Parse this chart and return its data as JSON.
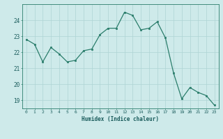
{
  "x": [
    0,
    1,
    2,
    3,
    4,
    5,
    6,
    7,
    8,
    9,
    10,
    11,
    12,
    13,
    14,
    15,
    16,
    17,
    18,
    19,
    20,
    21,
    22,
    23
  ],
  "y": [
    22.8,
    22.5,
    21.4,
    22.3,
    21.9,
    21.4,
    21.5,
    22.1,
    22.2,
    23.1,
    23.5,
    23.5,
    24.5,
    24.3,
    23.4,
    23.5,
    23.9,
    22.9,
    20.7,
    19.1,
    19.8,
    19.5,
    19.3,
    18.7
  ],
  "line_color": "#2a7d6b",
  "bg_color": "#ceeaea",
  "grid_color": "#aed4d4",
  "tick_color": "#2a7d6b",
  "label_color": "#1a5c5c",
  "xlabel": "Humidex (Indice chaleur)",
  "ylim": [
    18.5,
    25.0
  ],
  "yticks": [
    19,
    20,
    21,
    22,
    23,
    24
  ],
  "figsize": [
    3.2,
    2.0
  ],
  "dpi": 100
}
